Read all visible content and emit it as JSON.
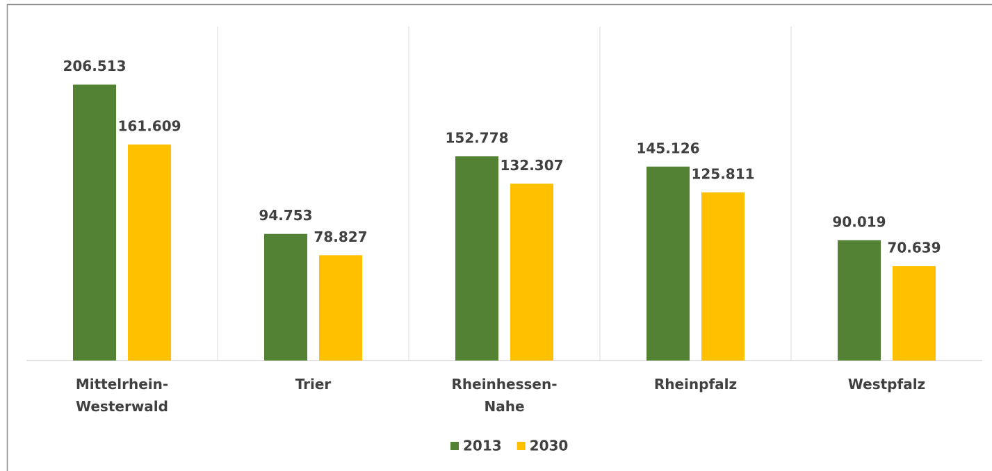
{
  "chart_data": {
    "type": "bar",
    "categories": [
      "Mittelrhein-Westerwald",
      "Trier",
      "Rheinhessen-Nahe",
      "Rheinpfalz",
      "Westpfalz"
    ],
    "series": [
      {
        "name": "2013",
        "color": "#548235",
        "values": [
          206513,
          94753,
          152778,
          145126,
          90019
        ],
        "value_labels": [
          "206.513",
          "94.753",
          "152.778",
          "145.126",
          "90.019"
        ]
      },
      {
        "name": "2030",
        "color": "#ffc000",
        "values": [
          161609,
          78827,
          132307,
          125811,
          70639
        ],
        "value_labels": [
          "161.609",
          "78.827",
          "132.307",
          "125.811",
          "70.639"
        ]
      }
    ],
    "ylim": [
      0,
      250000
    ],
    "legend": "bottom"
  }
}
